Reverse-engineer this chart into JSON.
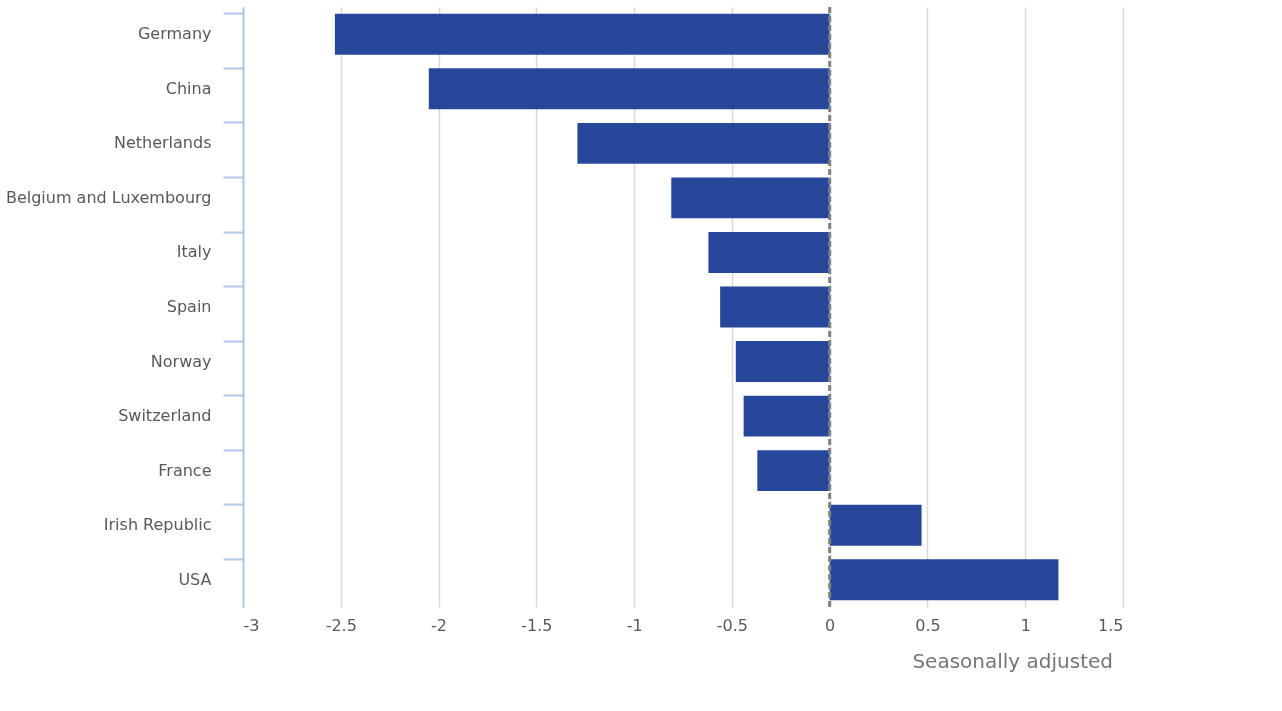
{
  "chart_data": {
    "type": "bar",
    "orientation": "horizontal",
    "categories": [
      "Germany",
      "China",
      "Netherlands",
      "Belgium and Luxembourg",
      "Italy",
      "Spain",
      "Norway",
      "Switzerland",
      "France",
      "Irish Republic",
      "USA"
    ],
    "values": [
      -2.53,
      -2.05,
      -1.29,
      -0.81,
      -0.62,
      -0.56,
      -0.48,
      -0.44,
      -0.37,
      0.47,
      1.17
    ],
    "color": "#27479a",
    "xlim": [
      -3,
      1.5
    ],
    "xticks": [
      -3,
      -2.5,
      -2,
      -1.5,
      -1,
      -0.5,
      0,
      0.5,
      1,
      1.5
    ],
    "grid": "x",
    "ref_lines": [
      {
        "axis": "x",
        "value": 0,
        "color": "#808080",
        "line_style": "dashed"
      }
    ],
    "annotations": [
      "Seasonally adjusted"
    ]
  }
}
